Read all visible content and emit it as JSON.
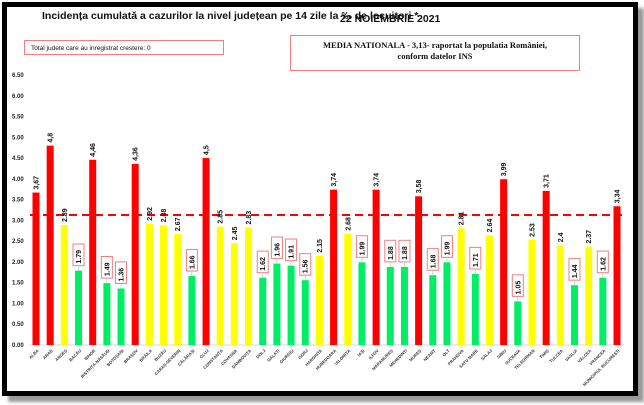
{
  "header": {
    "title": "Incidența cumulată a cazurilor la nivel județean pe 14 zile la ‰ de locuitori *",
    "date": "22 NOIEMBRIE 2021"
  },
  "notes": {
    "increase_box": "Total judete care au inregistrat crestere: 0",
    "national_line1": "MEDIA NATIONALA - 3,13-  raportat la populatia României,",
    "national_line2": "conform datelor INS"
  },
  "colors": {
    "above_average": "#ff0000",
    "near_average": "#ffff00",
    "below_average": "#00ee66",
    "average_line": "#ff0000",
    "boxed_label_border": "#f08080"
  },
  "chart_data": {
    "type": "bar",
    "title": "Incidența cumulată a cazurilor la nivel județean pe 14 zile la ‰ de locuitori *",
    "xlabel": "",
    "ylabel": "",
    "ylim": [
      0,
      6.5
    ],
    "yticks": [
      "0.00",
      "0.50",
      "1.00",
      "1.50",
      "2.00",
      "2.50",
      "3.00",
      "3.50",
      "4.00",
      "4.50",
      "5.00",
      "5.50",
      "6.00",
      "6.50"
    ],
    "reference_line": {
      "label": "MEDIA NATIONALA",
      "value": 3.13,
      "style": "dashed"
    },
    "grid": false,
    "legend": "none",
    "categories": [
      "ALBA",
      "ARAD",
      "ARGEȘ",
      "BACĂU",
      "BIHOR",
      "BISTRIȚA-NĂSĂUD",
      "BOTOȘANI",
      "BRAȘOV",
      "BRĂILA",
      "BUZĂU",
      "CARAȘ-SEVERIN",
      "CĂLĂRAȘI",
      "CLUJ",
      "CONSTANȚA",
      "COVASNA",
      "DÂMBOVIȚA",
      "DOLJ",
      "GALAȚI",
      "GIURGIU",
      "GORJ",
      "HARGHITA",
      "HUNEDOARA",
      "IALOMIȚA",
      "IAȘI",
      "ILFOV",
      "MARAMUREȘ",
      "MEHEDINȚI",
      "MUREȘ",
      "NEAMȚ",
      "OLT",
      "PRAHOVA",
      "SATU MARE",
      "SĂLAJ",
      "SIBIU",
      "SUCEAVA",
      "TELEORMAN",
      "TIMIȘ",
      "TULCEA",
      "VASLUI",
      "VÂLCEA",
      "VRANCEA",
      "MUNICIPIUL BUCUREȘTI"
    ],
    "values": [
      3.67,
      4.8,
      2.89,
      1.79,
      4.46,
      1.49,
      1.36,
      4.36,
      2.92,
      2.88,
      2.67,
      1.66,
      4.5,
      2.85,
      2.45,
      2.83,
      1.62,
      1.96,
      1.91,
      1.56,
      2.15,
      3.74,
      2.68,
      1.99,
      3.74,
      1.88,
      1.88,
      3.58,
      1.68,
      1.99,
      2.81,
      1.71,
      2.64,
      3.99,
      1.05,
      2.53,
      3.71,
      2.4,
      1.44,
      2.37,
      1.62,
      3.34
    ],
    "labels": [
      "3,67",
      "4,8",
      "2.89",
      "1.79",
      "4,46",
      "1.49",
      "1.36",
      "4,36",
      "2.92",
      "2.88",
      "2.67",
      "1.66",
      "4,5",
      "2.85",
      "2.45",
      "2.83",
      "1.62",
      "1.96",
      "1.91",
      "1.56",
      "2.15",
      "3,74",
      "2.68",
      "1.99",
      "3,74",
      "1.88",
      "1.88",
      "3,58",
      "1.68",
      "1.99",
      "2.81",
      "1.71",
      "2.64",
      "3,99",
      "1.05",
      "2.53",
      "3,71",
      "2.4",
      "1.44",
      "2.37",
      "1.62",
      "3,34"
    ],
    "bar_colors": [
      "red",
      "red",
      "yellow",
      "green",
      "red",
      "green",
      "green",
      "red",
      "yellow",
      "yellow",
      "yellow",
      "green",
      "red",
      "yellow",
      "yellow",
      "yellow",
      "green",
      "green",
      "green",
      "green",
      "yellow",
      "red",
      "yellow",
      "green",
      "red",
      "green",
      "green",
      "red",
      "green",
      "green",
      "yellow",
      "green",
      "yellow",
      "red",
      "green",
      "yellow",
      "red",
      "yellow",
      "green",
      "yellow",
      "green",
      "red"
    ]
  }
}
